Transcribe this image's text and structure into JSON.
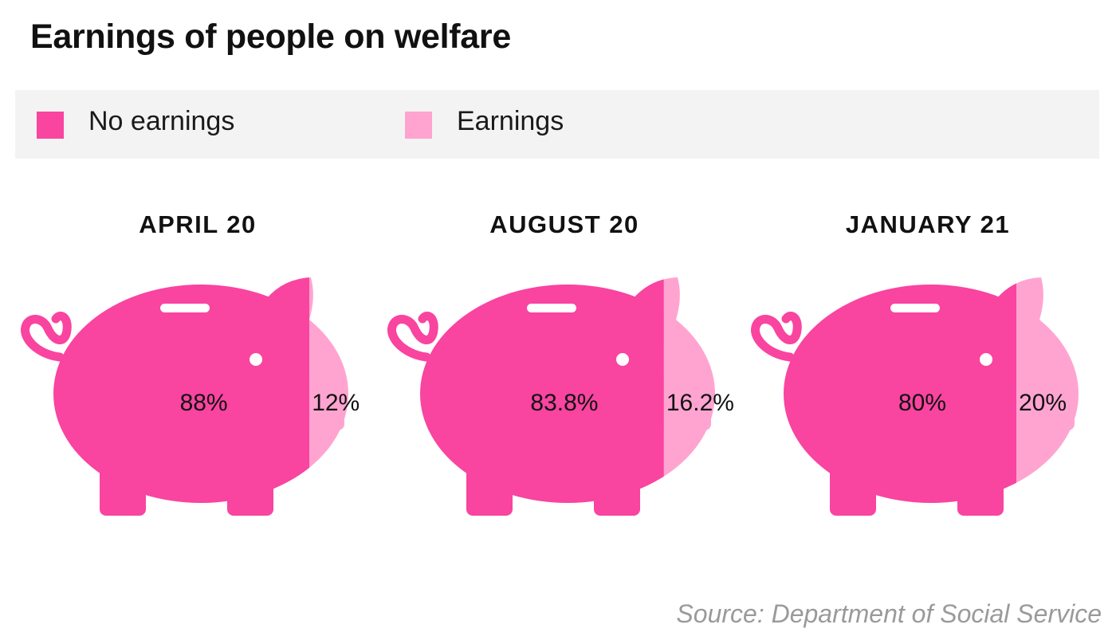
{
  "title": "Earnings of people on welfare",
  "source": "Source: Department of Social Service",
  "colors": {
    "no_earnings": "#f944a0",
    "earnings": "#ffa4d1",
    "eye": "#ffffff",
    "slot": "#ffffff"
  },
  "chart_data": {
    "type": "pie",
    "title": "Earnings of people on welfare",
    "legend": [
      "No earnings",
      "Earnings"
    ],
    "legend_position": "top",
    "series": [
      {
        "name": "No earnings",
        "values": [
          88,
          83.8,
          80
        ]
      },
      {
        "name": "Earnings",
        "values": [
          12,
          16.2,
          20
        ]
      }
    ],
    "categories": [
      "APRIL 20",
      "AUGUST 20",
      "JANUARY 21"
    ],
    "panels": [
      {
        "label": "APRIL 20",
        "no_earnings": 88,
        "earnings": 12,
        "no_earnings_label": "88%",
        "earnings_label": "12%"
      },
      {
        "label": "AUGUST 20",
        "no_earnings": 83.8,
        "earnings": 16.2,
        "no_earnings_label": "83.8%",
        "earnings_label": "16.2%"
      },
      {
        "label": "JANUARY 21",
        "no_earnings": 80,
        "earnings": 20,
        "no_earnings_label": "80%",
        "earnings_label": "20%"
      }
    ]
  }
}
